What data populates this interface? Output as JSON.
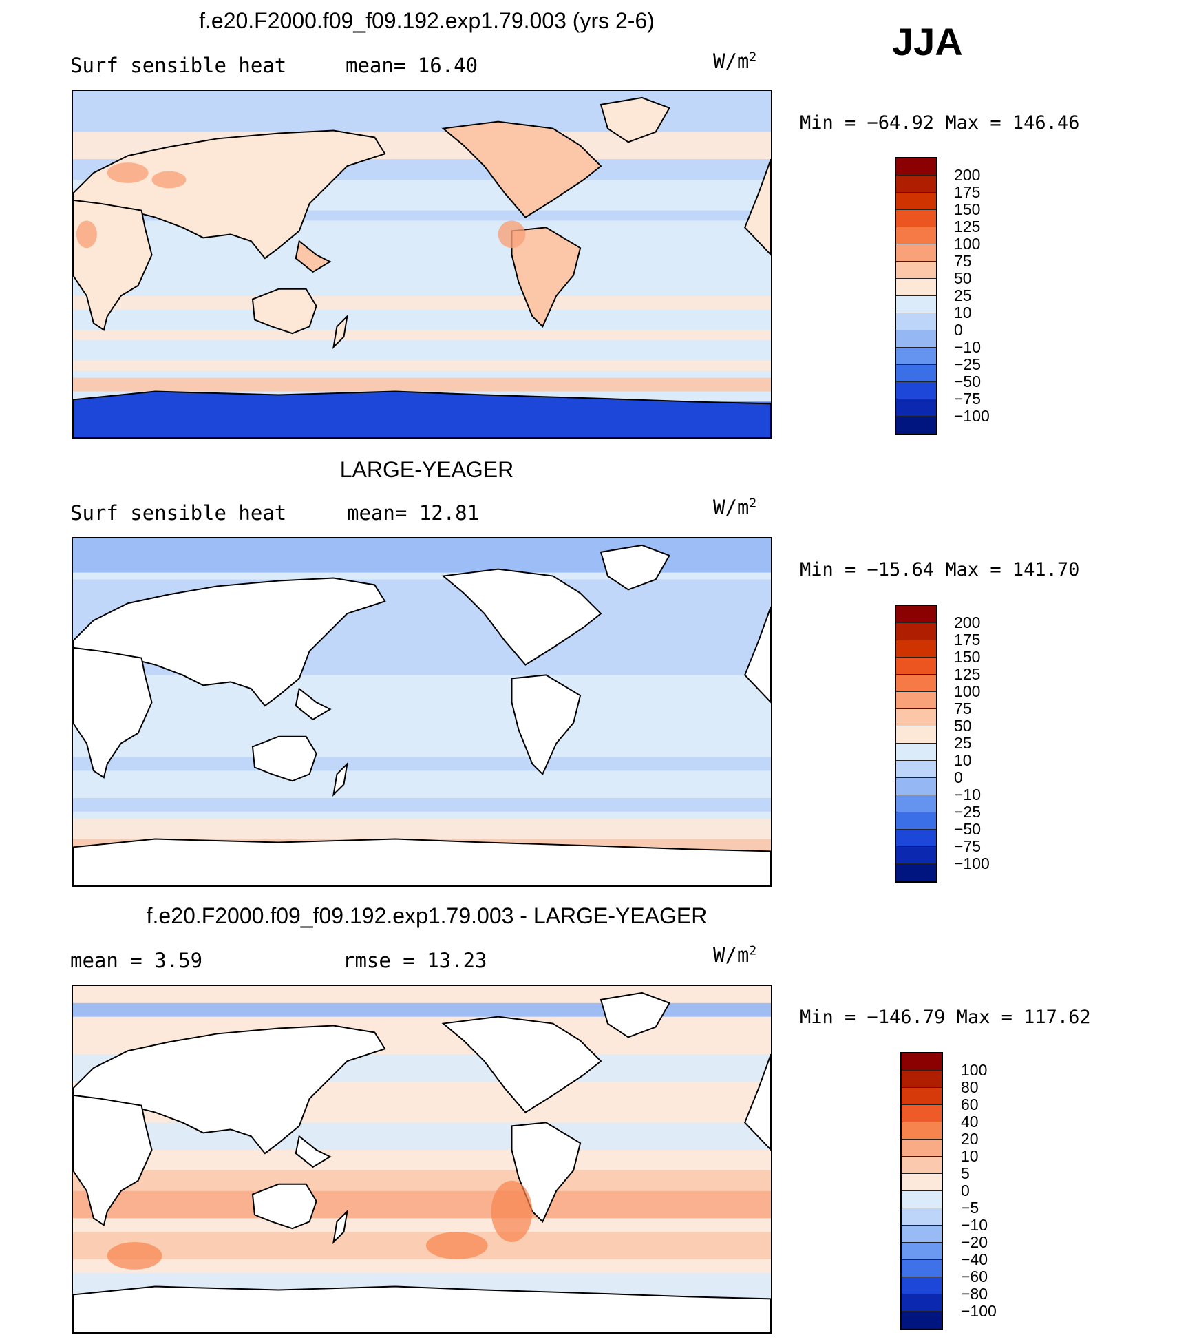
{
  "season": "JJA",
  "panels": [
    {
      "title": "f.e20.F2000.f09_f09.192.exp1.79.003 (yrs 2-6)",
      "left_label": "Surf  sensible  heat",
      "mid_label": "mean=   16.40",
      "units": "W/m",
      "units_sup": "2",
      "minmax": "Min  =  −64.92  Max  =  146.46",
      "colorbar_levels": [
        "200",
        "175",
        "150",
        "125",
        "100",
        "75",
        "50",
        "25",
        "10",
        "0",
        "−10",
        "−25",
        "−50",
        "−75",
        "−100"
      ],
      "colorbar_colors": [
        "#8b0000",
        "#b01e00",
        "#cf3300",
        "#ec5520",
        "#f57a45",
        "#f9a27a",
        "#fbc7a8",
        "#fde8d8",
        "#dcebfa",
        "#bcd5f9",
        "#95b8f5",
        "#6593f0",
        "#3b6fe8",
        "#1c47d8",
        "#0a28b0",
        "#001580"
      ],
      "map_style": "ocean"
    },
    {
      "title": "LARGE-YEAGER",
      "left_label": "Surf  sensible  heat",
      "mid_label": "mean=   12.81",
      "units": "W/m",
      "units_sup": "2",
      "minmax": "Min  =  −15.64  Max  =  141.70",
      "colorbar_levels": [
        "200",
        "175",
        "150",
        "125",
        "100",
        "75",
        "50",
        "25",
        "10",
        "0",
        "−10",
        "−25",
        "−50",
        "−75",
        "−100"
      ],
      "colorbar_colors": [
        "#8b0000",
        "#b01e00",
        "#cf3300",
        "#ec5520",
        "#f57a45",
        "#f9a27a",
        "#fbc7a8",
        "#fde8d8",
        "#dcebfa",
        "#bcd5f9",
        "#95b8f5",
        "#6593f0",
        "#3b6fe8",
        "#1c47d8",
        "#0a28b0",
        "#001580"
      ],
      "map_style": "ocean-only"
    },
    {
      "title": "f.e20.F2000.f09_f09.192.exp1.79.003 - LARGE-YEAGER",
      "left_label": "mean  =      3.59",
      "mid_label": "rmse  =     13.23",
      "units": "W/m",
      "units_sup": "2",
      "minmax": "Min  =  −146.79  Max  =  117.62",
      "colorbar_levels": [
        "100",
        "80",
        "60",
        "40",
        "20",
        "10",
        "5",
        "0",
        "−5",
        "−10",
        "−20",
        "−40",
        "−60",
        "−80",
        "−100"
      ],
      "colorbar_colors": [
        "#8b0000",
        "#b01e00",
        "#d63a0a",
        "#ee5a28",
        "#f6844f",
        "#f9ab86",
        "#fbcaae",
        "#fde8dc",
        "#dcebfa",
        "#bcd5f9",
        "#98bbf6",
        "#6b98f0",
        "#3f72e8",
        "#1c47d8",
        "#0a28b0",
        "#001580"
      ],
      "map_style": "diff"
    }
  ]
}
